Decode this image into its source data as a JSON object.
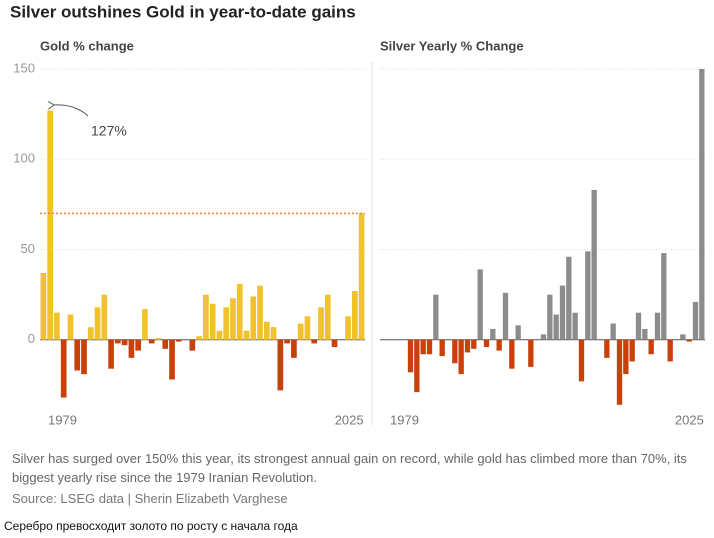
{
  "title": "Silver outshines Gold in year-to-date gains",
  "chart_data": [
    {
      "type": "bar",
      "title": "Gold % change",
      "categories": [
        null,
        "1979",
        null,
        null,
        null,
        null,
        null,
        null,
        null,
        null,
        null,
        null,
        null,
        null,
        null,
        null,
        null,
        null,
        null,
        null,
        null,
        null,
        null,
        null,
        null,
        null,
        null,
        null,
        null,
        null,
        null,
        null,
        null,
        null,
        null,
        null,
        null,
        null,
        null,
        null,
        null,
        null,
        null,
        null,
        null,
        null,
        null,
        "2025"
      ],
      "values": [
        37,
        127,
        15,
        -32,
        14,
        -17,
        -19,
        7,
        18,
        25,
        -16,
        -2,
        -3,
        -10,
        -6,
        17,
        -2,
        1,
        -5,
        -22,
        -1,
        0,
        -6,
        2,
        25,
        20,
        5,
        18,
        23,
        31,
        5,
        24,
        30,
        10,
        7,
        -28,
        -2,
        -10,
        9,
        13,
        -2,
        18,
        25,
        -4,
        0,
        13,
        27,
        70
      ],
      "color": "#f2c12e",
      "negative_color": "#c8410b",
      "ylim": [
        -40,
        150
      ],
      "yticks": [
        0,
        50,
        100,
        150
      ],
      "grid": true,
      "reference_line": 70,
      "annotation": "127%"
    },
    {
      "type": "bar",
      "title": "Silver Yearly % Change",
      "categories": [
        null,
        "1979",
        null,
        null,
        null,
        null,
        null,
        null,
        null,
        null,
        null,
        null,
        null,
        null,
        null,
        null,
        null,
        null,
        null,
        null,
        null,
        null,
        null,
        null,
        null,
        null,
        null,
        null,
        null,
        null,
        null,
        null,
        null,
        null,
        null,
        null,
        null,
        null,
        null,
        null,
        null,
        null,
        null,
        null,
        null,
        null,
        null,
        "2025"
      ],
      "values": [
        0,
        -18,
        -29,
        -8,
        -8,
        25,
        -9,
        0,
        -13,
        -19,
        -7,
        -5,
        39,
        -4,
        6,
        -6,
        26,
        -16,
        8,
        0,
        -15,
        0,
        3,
        25,
        14,
        30,
        46,
        15,
        -23,
        49,
        83,
        0,
        -10,
        9,
        -36,
        -19,
        -12,
        15,
        6,
        -8,
        15,
        48,
        -12,
        0,
        3,
        -1,
        21,
        150
      ],
      "color": "#8c8c8c",
      "negative_color": "#c8410b",
      "ylim": [
        -40,
        150
      ],
      "grid": true
    }
  ],
  "note": "Silver has surged over 150% this year, its strongest annual gain on record, while gold has climbed more than 70%, its biggest yearly rise since the 1979 Iranian Revolution.",
  "source": "Source: LSEG data | Sherin Elizabeth Varghese",
  "footer": "Серебро превосходит золото по росту с начала года"
}
